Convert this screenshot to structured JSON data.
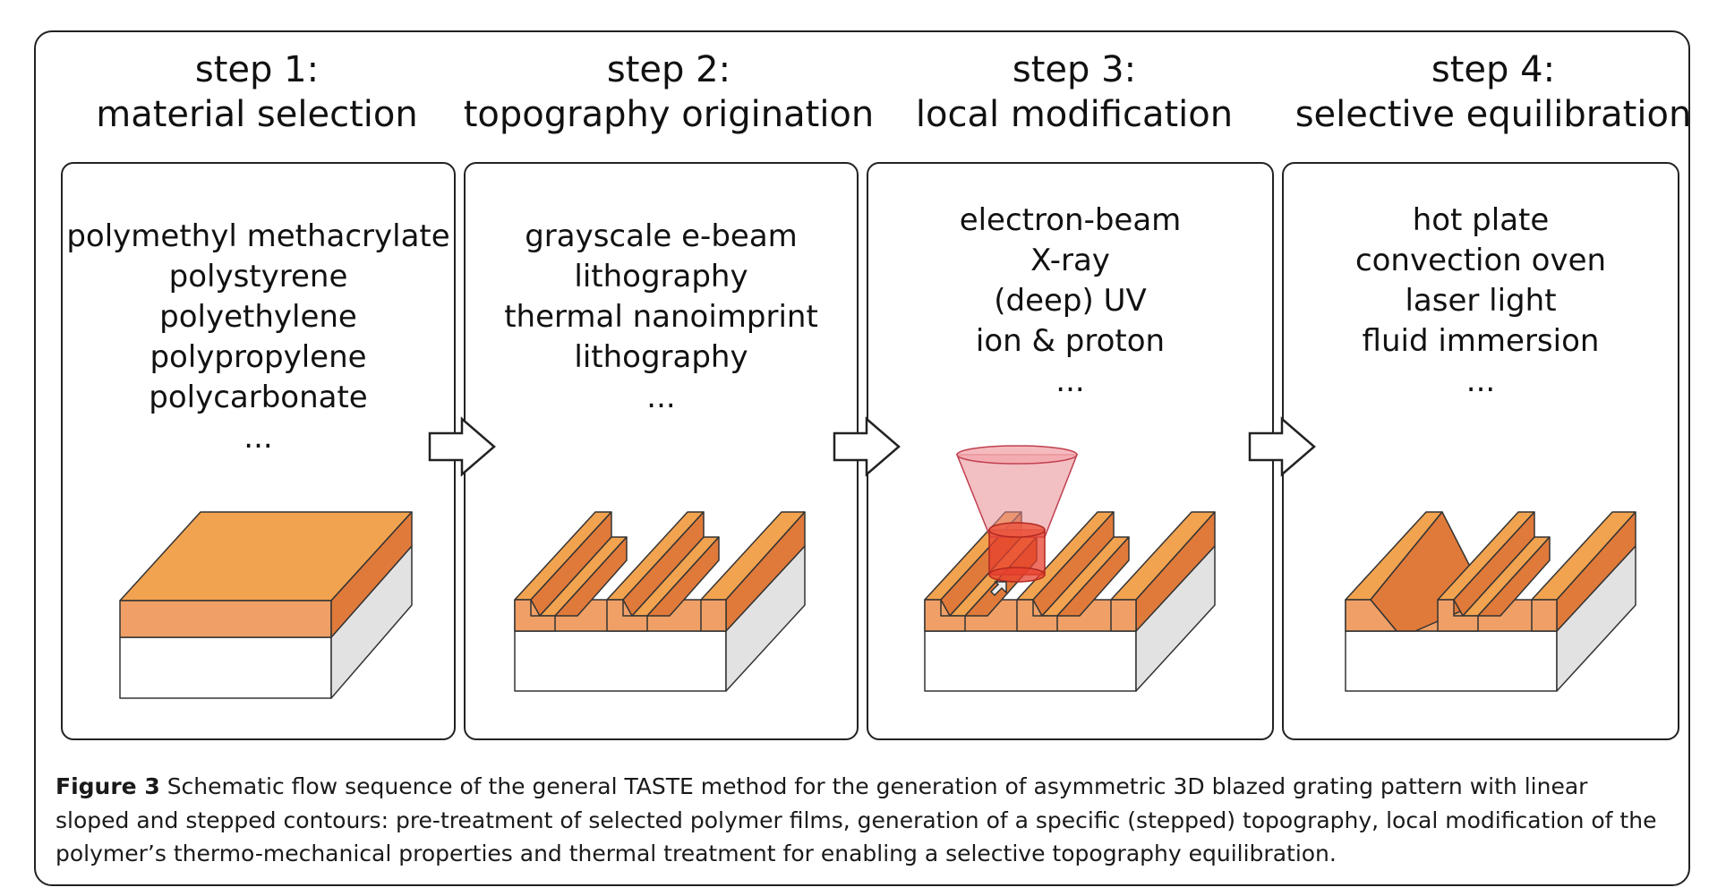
{
  "steps": [
    {
      "label": "step 1:",
      "title": "material selection",
      "items": [
        "polymethyl methacrylate",
        "polystyrene",
        "polyethylene",
        "polypropylene",
        "polycarbonate",
        "..."
      ]
    },
    {
      "label": "step 2:",
      "title": "topography origination",
      "items": [
        "grayscale e-beam",
        "lithography",
        "thermal nanoimprint",
        "lithography",
        "..."
      ]
    },
    {
      "label": "step 3:",
      "title": "local modification",
      "items": [
        "electron-beam",
        "X-ray",
        "(deep) UV",
        "ion & proton",
        "..."
      ]
    },
    {
      "label": "step 4:",
      "title": "selective equilibration",
      "items": [
        "hot plate",
        "convection oven",
        "laser light",
        "fluid immersion",
        "..."
      ]
    }
  ],
  "caption": {
    "label": "Figure 3",
    "text": "Schematic flow sequence of the general TASTE method for the generation of asymmetric 3D blazed grating pattern with linear sloped and stepped contours: pre-treatment of selected polymer films, generation of a specific (stepped) topography, local modification of the polymer’s thermo-mechanical properties and thermal treatment for enabling a selective topography equilibration."
  },
  "colors": {
    "polymer_top": "#f2a350",
    "polymer_front": "#f0a066",
    "polymer_side": "#e07a3a",
    "substrate_side": "#e2e2e2",
    "beam": "#e88a90",
    "beam_spot": "#e8402e"
  }
}
